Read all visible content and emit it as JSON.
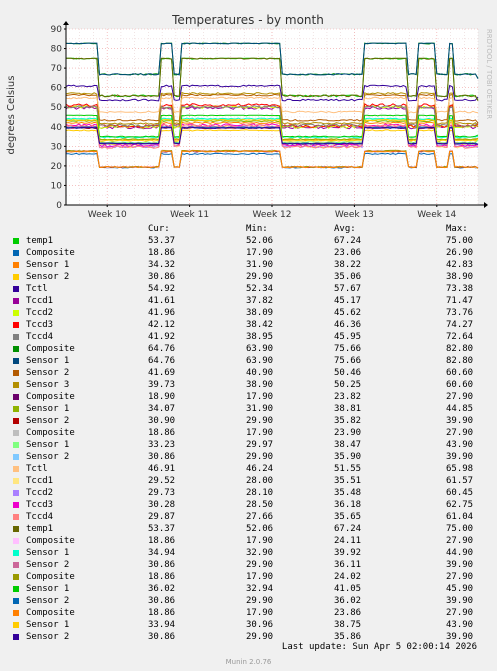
{
  "chart_data": {
    "type": "line",
    "title": "Temperatures - by month",
    "ylabel": "degrees Celsius",
    "watermark": "RRDTOOL / TOBI OETIKER",
    "ylim": [
      0,
      90
    ],
    "yticks": [
      0,
      10,
      20,
      30,
      40,
      50,
      60,
      70,
      80,
      90
    ],
    "xlim": [
      0,
      1
    ],
    "xticks": [
      {
        "label": "Week 10",
        "pos": 0.1
      },
      {
        "label": "Week 11",
        "pos": 0.3
      },
      {
        "label": "Week 12",
        "pos": 0.5
      },
      {
        "label": "Week 13",
        "pos": 0.7
      },
      {
        "label": "Week 14",
        "pos": 0.9
      }
    ],
    "grid": true,
    "columns": [
      "Cur:",
      "Min:",
      "Avg:",
      "Max:"
    ],
    "series": [
      {
        "name": "temp1",
        "color": "#00cc00",
        "cur": "53.37",
        "min": "52.06",
        "avg": "67.24",
        "max": "75.00"
      },
      {
        "name": "Composite",
        "color": "#0066b3",
        "cur": "18.86",
        "min": "17.90",
        "avg": "23.06",
        "max": "26.90"
      },
      {
        "name": "Sensor 1",
        "color": "#ff8000",
        "cur": "34.32",
        "min": "31.90",
        "avg": "38.22",
        "max": "42.83"
      },
      {
        "name": "Sensor 2",
        "color": "#ffcc00",
        "cur": "30.86",
        "min": "29.90",
        "avg": "35.06",
        "max": "38.90"
      },
      {
        "name": "Tctl",
        "color": "#330099",
        "cur": "54.92",
        "min": "52.34",
        "avg": "57.67",
        "max": "73.38"
      },
      {
        "name": "Tccd1",
        "color": "#990099",
        "cur": "41.61",
        "min": "37.82",
        "avg": "45.17",
        "max": "71.47"
      },
      {
        "name": "Tccd2",
        "color": "#ccff00",
        "cur": "41.96",
        "min": "38.09",
        "avg": "45.62",
        "max": "73.76"
      },
      {
        "name": "Tccd3",
        "color": "#ff0000",
        "cur": "42.12",
        "min": "38.42",
        "avg": "46.36",
        "max": "74.27"
      },
      {
        "name": "Tccd4",
        "color": "#808080",
        "cur": "41.92",
        "min": "38.95",
        "avg": "45.95",
        "max": "72.64"
      },
      {
        "name": "Composite",
        "color": "#008f00",
        "cur": "64.76",
        "min": "63.90",
        "avg": "75.66",
        "max": "82.80"
      },
      {
        "name": "Sensor 1",
        "color": "#00487d",
        "cur": "64.76",
        "min": "63.90",
        "avg": "75.66",
        "max": "82.80"
      },
      {
        "name": "Sensor 2",
        "color": "#b35a00",
        "cur": "41.69",
        "min": "40.90",
        "avg": "50.46",
        "max": "60.60"
      },
      {
        "name": "Sensor 3",
        "color": "#b38f00",
        "cur": "39.73",
        "min": "38.90",
        "avg": "50.25",
        "max": "60.60"
      },
      {
        "name": "Composite",
        "color": "#6b006b",
        "cur": "18.90",
        "min": "17.90",
        "avg": "23.82",
        "max": "27.90"
      },
      {
        "name": "Sensor 1",
        "color": "#8fb300",
        "cur": "34.07",
        "min": "31.90",
        "avg": "38.81",
        "max": "44.85"
      },
      {
        "name": "Sensor 2",
        "color": "#b30000",
        "cur": "30.90",
        "min": "29.90",
        "avg": "35.82",
        "max": "39.90"
      },
      {
        "name": "Composite",
        "color": "#bebebe",
        "cur": "18.86",
        "min": "17.90",
        "avg": "23.90",
        "max": "27.90"
      },
      {
        "name": "Sensor 1",
        "color": "#80ff80",
        "cur": "33.23",
        "min": "29.97",
        "avg": "38.47",
        "max": "43.90"
      },
      {
        "name": "Sensor 2",
        "color": "#80c9ff",
        "cur": "30.86",
        "min": "29.90",
        "avg": "35.90",
        "max": "39.90"
      },
      {
        "name": "Tctl",
        "color": "#ffc080",
        "cur": "46.91",
        "min": "46.24",
        "avg": "51.55",
        "max": "65.98"
      },
      {
        "name": "Tccd1",
        "color": "#ffe680",
        "cur": "29.52",
        "min": "28.00",
        "avg": "35.51",
        "max": "61.57"
      },
      {
        "name": "Tccd2",
        "color": "#aa80ff",
        "cur": "29.73",
        "min": "28.10",
        "avg": "35.48",
        "max": "60.45"
      },
      {
        "name": "Tccd3",
        "color": "#ee00cc",
        "cur": "30.28",
        "min": "28.50",
        "avg": "36.18",
        "max": "62.75"
      },
      {
        "name": "Tccd4",
        "color": "#ff8080",
        "cur": "29.87",
        "min": "27.66",
        "avg": "35.65",
        "max": "61.04"
      },
      {
        "name": "temp1",
        "color": "#666600",
        "cur": "53.37",
        "min": "52.06",
        "avg": "67.24",
        "max": "75.00"
      },
      {
        "name": "Composite",
        "color": "#ffbfff",
        "cur": "18.86",
        "min": "17.90",
        "avg": "24.11",
        "max": "27.90"
      },
      {
        "name": "Sensor 1",
        "color": "#00ffcc",
        "cur": "34.94",
        "min": "32.90",
        "avg": "39.92",
        "max": "44.90"
      },
      {
        "name": "Sensor 2",
        "color": "#cc6699",
        "cur": "30.86",
        "min": "29.90",
        "avg": "36.11",
        "max": "39.90"
      },
      {
        "name": "Composite",
        "color": "#999900",
        "cur": "18.86",
        "min": "17.90",
        "avg": "24.02",
        "max": "27.90"
      },
      {
        "name": "Sensor 1",
        "color": "#00cc00",
        "cur": "36.02",
        "min": "32.94",
        "avg": "41.05",
        "max": "45.90"
      },
      {
        "name": "Sensor 2",
        "color": "#0066b3",
        "cur": "30.86",
        "min": "29.90",
        "avg": "36.02",
        "max": "39.90"
      },
      {
        "name": "Composite",
        "color": "#ff8000",
        "cur": "18.86",
        "min": "17.90",
        "avg": "23.86",
        "max": "27.90"
      },
      {
        "name": "Sensor 1",
        "color": "#ffcc00",
        "cur": "33.94",
        "min": "30.96",
        "avg": "38.75",
        "max": "43.90"
      },
      {
        "name": "Sensor 2",
        "color": "#330099",
        "cur": "30.86",
        "min": "29.90",
        "avg": "35.86",
        "max": "39.90"
      }
    ]
  },
  "footer": {
    "last_update": "Last update: Sun Apr  5 02:00:14 2026",
    "munin": "Munin 2.0.76"
  }
}
